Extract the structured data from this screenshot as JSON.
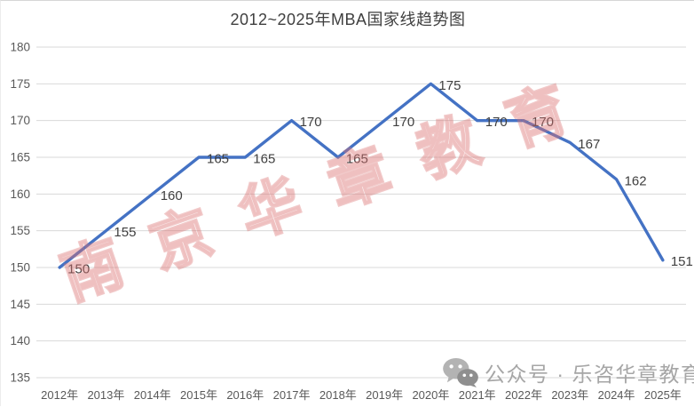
{
  "title": "2012~2025年MBA国家线趋势图",
  "chart_data": {
    "type": "line",
    "title": "2012~2025年MBA国家线趋势图",
    "categories": [
      "2012年",
      "2013年",
      "2014年",
      "2015年",
      "2016年",
      "2017年",
      "2018年",
      "2019年",
      "2020年",
      "2021年",
      "2022年",
      "2023年",
      "2024年",
      "2025年"
    ],
    "series": [
      {
        "name": "MBA国家线",
        "values": [
          150,
          155,
          160,
          165,
          165,
          170,
          165,
          170,
          175,
          170,
          170,
          167,
          162,
          151
        ]
      }
    ],
    "data_labels": [
      150,
      155,
      160,
      165,
      165,
      170,
      165,
      170,
      175,
      170,
      170,
      167,
      162,
      151
    ],
    "xlabel": "",
    "ylabel": "",
    "ylim": [
      135,
      180
    ],
    "ytick_step": 5,
    "yticks": [
      135,
      140,
      145,
      150,
      155,
      160,
      165,
      170,
      175,
      180
    ],
    "grid": true,
    "legend": "none"
  },
  "colors": {
    "line": "#4472C4",
    "grid": "#d9d9d9",
    "axis_text": "#595959",
    "data_label_text": "#404040",
    "title_text": "#3f3f3f",
    "watermark_pink": "#db7070",
    "watermark_gray": "#a6a6a6"
  },
  "watermarks": {
    "diagonal": {
      "text": "南京华章教育"
    },
    "bottom": {
      "icon": "wechat-icon",
      "text": "公众号 · 乐咨华章教育"
    }
  }
}
